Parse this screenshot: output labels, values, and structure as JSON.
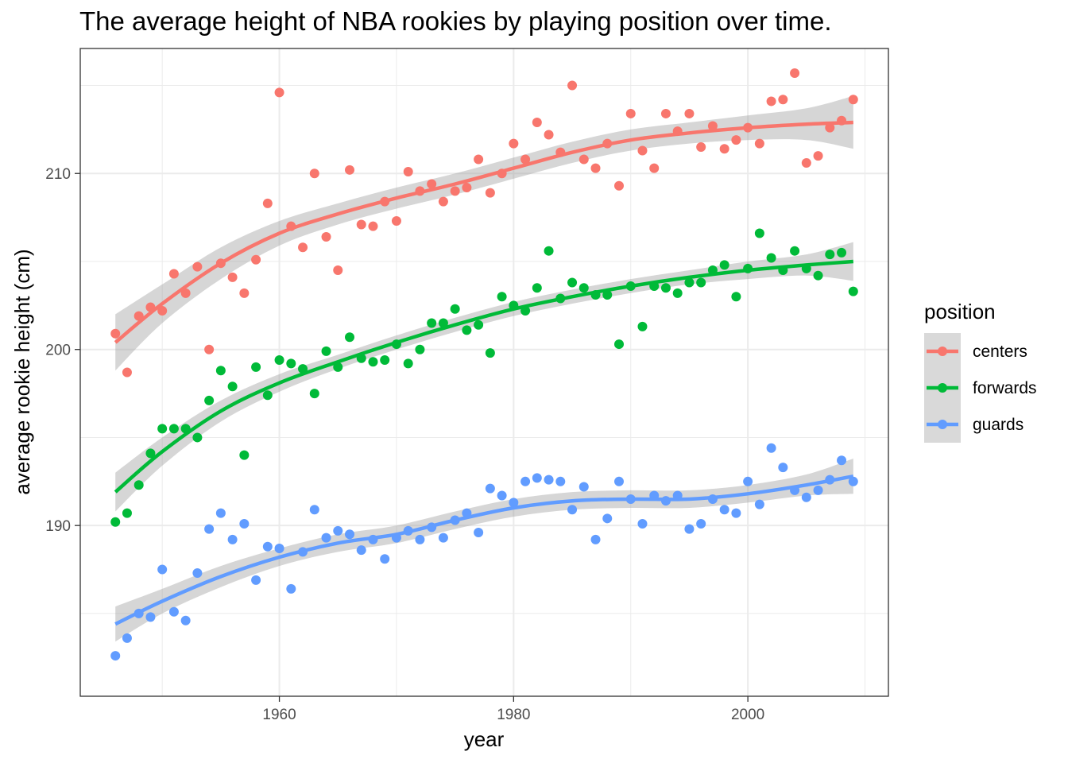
{
  "chart_data": {
    "type": "scatter",
    "title": "The average height of NBA rookies by playing position over time.",
    "xlabel": "year",
    "ylabel": "average rookie height (cm)",
    "xlim": [
      1943,
      2012
    ],
    "ylim": [
      180.3,
      217.1
    ],
    "x_ticks": [
      {
        "value": 1960,
        "label": "1960"
      },
      {
        "value": 1980,
        "label": "1980"
      },
      {
        "value": 2000,
        "label": "2000"
      }
    ],
    "y_ticks": [
      {
        "value": 190,
        "label": "190"
      },
      {
        "value": 200,
        "label": "200"
      },
      {
        "value": 210,
        "label": "210"
      }
    ],
    "grid": true,
    "legend": {
      "title": "position",
      "placement": "right"
    },
    "series": [
      {
        "name": "centers",
        "color": "#F8766D",
        "points": [
          [
            1946,
            200.9
          ],
          [
            1947,
            198.7
          ],
          [
            1948,
            201.9
          ],
          [
            1949,
            202.4
          ],
          [
            1950,
            202.2
          ],
          [
            1951,
            204.3
          ],
          [
            1952,
            203.2
          ],
          [
            1953,
            204.7
          ],
          [
            1954,
            200
          ],
          [
            1955,
            204.9
          ],
          [
            1956,
            204.1
          ],
          [
            1957,
            203.2
          ],
          [
            1958,
            205.1
          ],
          [
            1959,
            208.3
          ],
          [
            1960,
            214.6
          ],
          [
            1961,
            207
          ],
          [
            1962,
            205.8
          ],
          [
            1963,
            210
          ],
          [
            1964,
            206.4
          ],
          [
            1965,
            204.5
          ],
          [
            1966,
            210.2
          ],
          [
            1967,
            207.1
          ],
          [
            1968,
            207
          ],
          [
            1969,
            208.4
          ],
          [
            1970,
            207.3
          ],
          [
            1971,
            210.1
          ],
          [
            1972,
            209
          ],
          [
            1973,
            209.4
          ],
          [
            1974,
            208.4
          ],
          [
            1975,
            209
          ],
          [
            1976,
            209.2
          ],
          [
            1977,
            210.8
          ],
          [
            1978,
            208.9
          ],
          [
            1979,
            210
          ],
          [
            1980,
            211.7
          ],
          [
            1981,
            210.8
          ],
          [
            1982,
            212.9
          ],
          [
            1983,
            212.2
          ],
          [
            1984,
            211.2
          ],
          [
            1985,
            215
          ],
          [
            1986,
            210.8
          ],
          [
            1987,
            210.3
          ],
          [
            1988,
            211.7
          ],
          [
            1989,
            209.3
          ],
          [
            1990,
            213.4
          ],
          [
            1991,
            211.3
          ],
          [
            1992,
            210.3
          ],
          [
            1993,
            213.4
          ],
          [
            1994,
            212.4
          ],
          [
            1995,
            213.4
          ],
          [
            1996,
            211.5
          ],
          [
            1997,
            212.7
          ],
          [
            1998,
            211.4
          ],
          [
            1999,
            211.9
          ],
          [
            2000,
            212.6
          ],
          [
            2001,
            211.7
          ],
          [
            2002,
            214.1
          ],
          [
            2003,
            214.2
          ],
          [
            2004,
            215.7
          ],
          [
            2005,
            210.6
          ],
          [
            2006,
            211
          ],
          [
            2007,
            212.6
          ],
          [
            2008,
            213
          ],
          [
            2009,
            214.2
          ]
        ],
        "fit": [
          [
            1946,
            200.4
          ],
          [
            1950,
            202.6
          ],
          [
            1955,
            204.9
          ],
          [
            1960,
            206.6
          ],
          [
            1965,
            207.7
          ],
          [
            1970,
            208.6
          ],
          [
            1975,
            209.4
          ],
          [
            1980,
            210.3
          ],
          [
            1985,
            211.2
          ],
          [
            1990,
            211.9
          ],
          [
            1995,
            212.3
          ],
          [
            2000,
            212.6
          ],
          [
            2005,
            212.8
          ],
          [
            2009,
            212.9
          ]
        ],
        "band_halfwidth": [
          1.6,
          1.1,
          0.9,
          0.7,
          0.6,
          0.6,
          0.6,
          0.6,
          0.6,
          0.6,
          0.6,
          0.7,
          0.9,
          1.5
        ]
      },
      {
        "name": "forwards",
        "color": "#00BA38",
        "points": [
          [
            1946,
            190.2
          ],
          [
            1947,
            190.7
          ],
          [
            1948,
            192.3
          ],
          [
            1949,
            194.1
          ],
          [
            1950,
            195.5
          ],
          [
            1951,
            195.5
          ],
          [
            1952,
            195.5
          ],
          [
            1953,
            195
          ],
          [
            1954,
            197.1
          ],
          [
            1955,
            198.8
          ],
          [
            1956,
            197.9
          ],
          [
            1957,
            194
          ],
          [
            1958,
            199
          ],
          [
            1959,
            197.4
          ],
          [
            1960,
            199.4
          ],
          [
            1961,
            199.2
          ],
          [
            1962,
            198.9
          ],
          [
            1963,
            197.5
          ],
          [
            1964,
            199.9
          ],
          [
            1965,
            199
          ],
          [
            1966,
            200.7
          ],
          [
            1967,
            199.5
          ],
          [
            1968,
            199.3
          ],
          [
            1969,
            199.4
          ],
          [
            1970,
            200.3
          ],
          [
            1971,
            199.2
          ],
          [
            1972,
            200
          ],
          [
            1973,
            201.5
          ],
          [
            1974,
            201.5
          ],
          [
            1975,
            202.3
          ],
          [
            1976,
            201.1
          ],
          [
            1977,
            201.4
          ],
          [
            1978,
            199.8
          ],
          [
            1979,
            203
          ],
          [
            1980,
            202.5
          ],
          [
            1981,
            202.2
          ],
          [
            1982,
            203.5
          ],
          [
            1983,
            205.6
          ],
          [
            1984,
            202.9
          ],
          [
            1985,
            203.8
          ],
          [
            1986,
            203.5
          ],
          [
            1987,
            203.1
          ],
          [
            1988,
            203.1
          ],
          [
            1989,
            200.3
          ],
          [
            1990,
            203.6
          ],
          [
            1991,
            201.3
          ],
          [
            1992,
            203.6
          ],
          [
            1993,
            203.5
          ],
          [
            1994,
            203.2
          ],
          [
            1995,
            203.8
          ],
          [
            1996,
            203.8
          ],
          [
            1997,
            204.5
          ],
          [
            1998,
            204.8
          ],
          [
            1999,
            203
          ],
          [
            2000,
            204.6
          ],
          [
            2001,
            206.6
          ],
          [
            2002,
            205.2
          ],
          [
            2003,
            204.5
          ],
          [
            2004,
            205.6
          ],
          [
            2005,
            204.6
          ],
          [
            2006,
            204.2
          ],
          [
            2007,
            205.4
          ],
          [
            2008,
            205.5
          ],
          [
            2009,
            203.3
          ]
        ],
        "fit": [
          [
            1946,
            191.9
          ],
          [
            1950,
            194.2
          ],
          [
            1955,
            196.5
          ],
          [
            1960,
            198.1
          ],
          [
            1965,
            199.3
          ],
          [
            1970,
            200.4
          ],
          [
            1975,
            201.4
          ],
          [
            1980,
            202.3
          ],
          [
            1985,
            203
          ],
          [
            1990,
            203.6
          ],
          [
            1995,
            204.1
          ],
          [
            2000,
            204.5
          ],
          [
            2005,
            204.8
          ],
          [
            2009,
            205
          ]
        ],
        "band_halfwidth": [
          1.1,
          0.8,
          0.6,
          0.5,
          0.4,
          0.4,
          0.4,
          0.4,
          0.4,
          0.4,
          0.4,
          0.5,
          0.6,
          1.1
        ]
      },
      {
        "name": "guards",
        "color": "#619CFF",
        "points": [
          [
            1946,
            182.6
          ],
          [
            1947,
            183.6
          ],
          [
            1948,
            185
          ],
          [
            1949,
            184.8
          ],
          [
            1950,
            187.5
          ],
          [
            1951,
            185.1
          ],
          [
            1952,
            184.6
          ],
          [
            1953,
            187.3
          ],
          [
            1954,
            189.8
          ],
          [
            1955,
            190.7
          ],
          [
            1956,
            189.2
          ],
          [
            1957,
            190.1
          ],
          [
            1958,
            186.9
          ],
          [
            1959,
            188.8
          ],
          [
            1960,
            188.7
          ],
          [
            1961,
            186.4
          ],
          [
            1962,
            188.5
          ],
          [
            1963,
            190.9
          ],
          [
            1964,
            189.3
          ],
          [
            1965,
            189.7
          ],
          [
            1966,
            189.5
          ],
          [
            1967,
            188.6
          ],
          [
            1968,
            189.2
          ],
          [
            1969,
            188.1
          ],
          [
            1970,
            189.3
          ],
          [
            1971,
            189.7
          ],
          [
            1972,
            189.2
          ],
          [
            1973,
            189.9
          ],
          [
            1974,
            189.3
          ],
          [
            1975,
            190.3
          ],
          [
            1976,
            190.7
          ],
          [
            1977,
            189.6
          ],
          [
            1978,
            192.1
          ],
          [
            1979,
            191.7
          ],
          [
            1980,
            191.3
          ],
          [
            1981,
            192.5
          ],
          [
            1982,
            192.7
          ],
          [
            1983,
            192.6
          ],
          [
            1984,
            192.5
          ],
          [
            1985,
            190.9
          ],
          [
            1986,
            192.2
          ],
          [
            1987,
            189.2
          ],
          [
            1988,
            190.4
          ],
          [
            1989,
            192.5
          ],
          [
            1990,
            191.5
          ],
          [
            1991,
            190.1
          ],
          [
            1992,
            191.7
          ],
          [
            1993,
            191.4
          ],
          [
            1994,
            191.7
          ],
          [
            1995,
            189.8
          ],
          [
            1996,
            190.1
          ],
          [
            1997,
            191.5
          ],
          [
            1998,
            190.9
          ],
          [
            1999,
            190.7
          ],
          [
            2000,
            192.5
          ],
          [
            2001,
            191.2
          ],
          [
            2002,
            194.4
          ],
          [
            2003,
            193.3
          ],
          [
            2004,
            192
          ],
          [
            2005,
            191.6
          ],
          [
            2006,
            192
          ],
          [
            2007,
            192.6
          ],
          [
            2008,
            193.7
          ],
          [
            2009,
            192.5
          ]
        ],
        "fit": [
          [
            1946,
            184.4
          ],
          [
            1950,
            185.7
          ],
          [
            1955,
            187.1
          ],
          [
            1960,
            188.2
          ],
          [
            1965,
            189
          ],
          [
            1970,
            189.5
          ],
          [
            1975,
            190.3
          ],
          [
            1980,
            191
          ],
          [
            1985,
            191.4
          ],
          [
            1990,
            191.5
          ],
          [
            1995,
            191.5
          ],
          [
            2000,
            191.8
          ],
          [
            2005,
            192.3
          ],
          [
            2009,
            192.8
          ]
        ],
        "band_halfwidth": [
          1,
          0.7,
          0.6,
          0.5,
          0.5,
          0.5,
          0.5,
          0.5,
          0.5,
          0.5,
          0.5,
          0.5,
          0.6,
          1
        ]
      }
    ]
  }
}
